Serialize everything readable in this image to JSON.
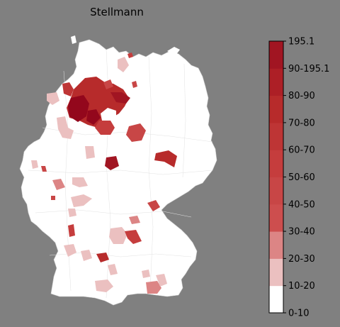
{
  "title": "Stellmann",
  "legend": {
    "labels": [
      "0-10",
      "10-20",
      "20-30",
      "30-40",
      "40-50",
      "50-60",
      "60-70",
      "70-80",
      "80-90",
      "90-195.1",
      "195.1"
    ],
    "colors": [
      "#ffffff",
      "#ebc0c0",
      "#dc8585",
      "#cd4e4e",
      "#c84646",
      "#c53d3d",
      "#be3535",
      "#b72b2b",
      "#ad1f26",
      "#a11522",
      "#93071c"
    ]
  },
  "map": {
    "background": "#808080",
    "base_color": "#ffffff",
    "border_color": "#d9d9d9"
  }
}
